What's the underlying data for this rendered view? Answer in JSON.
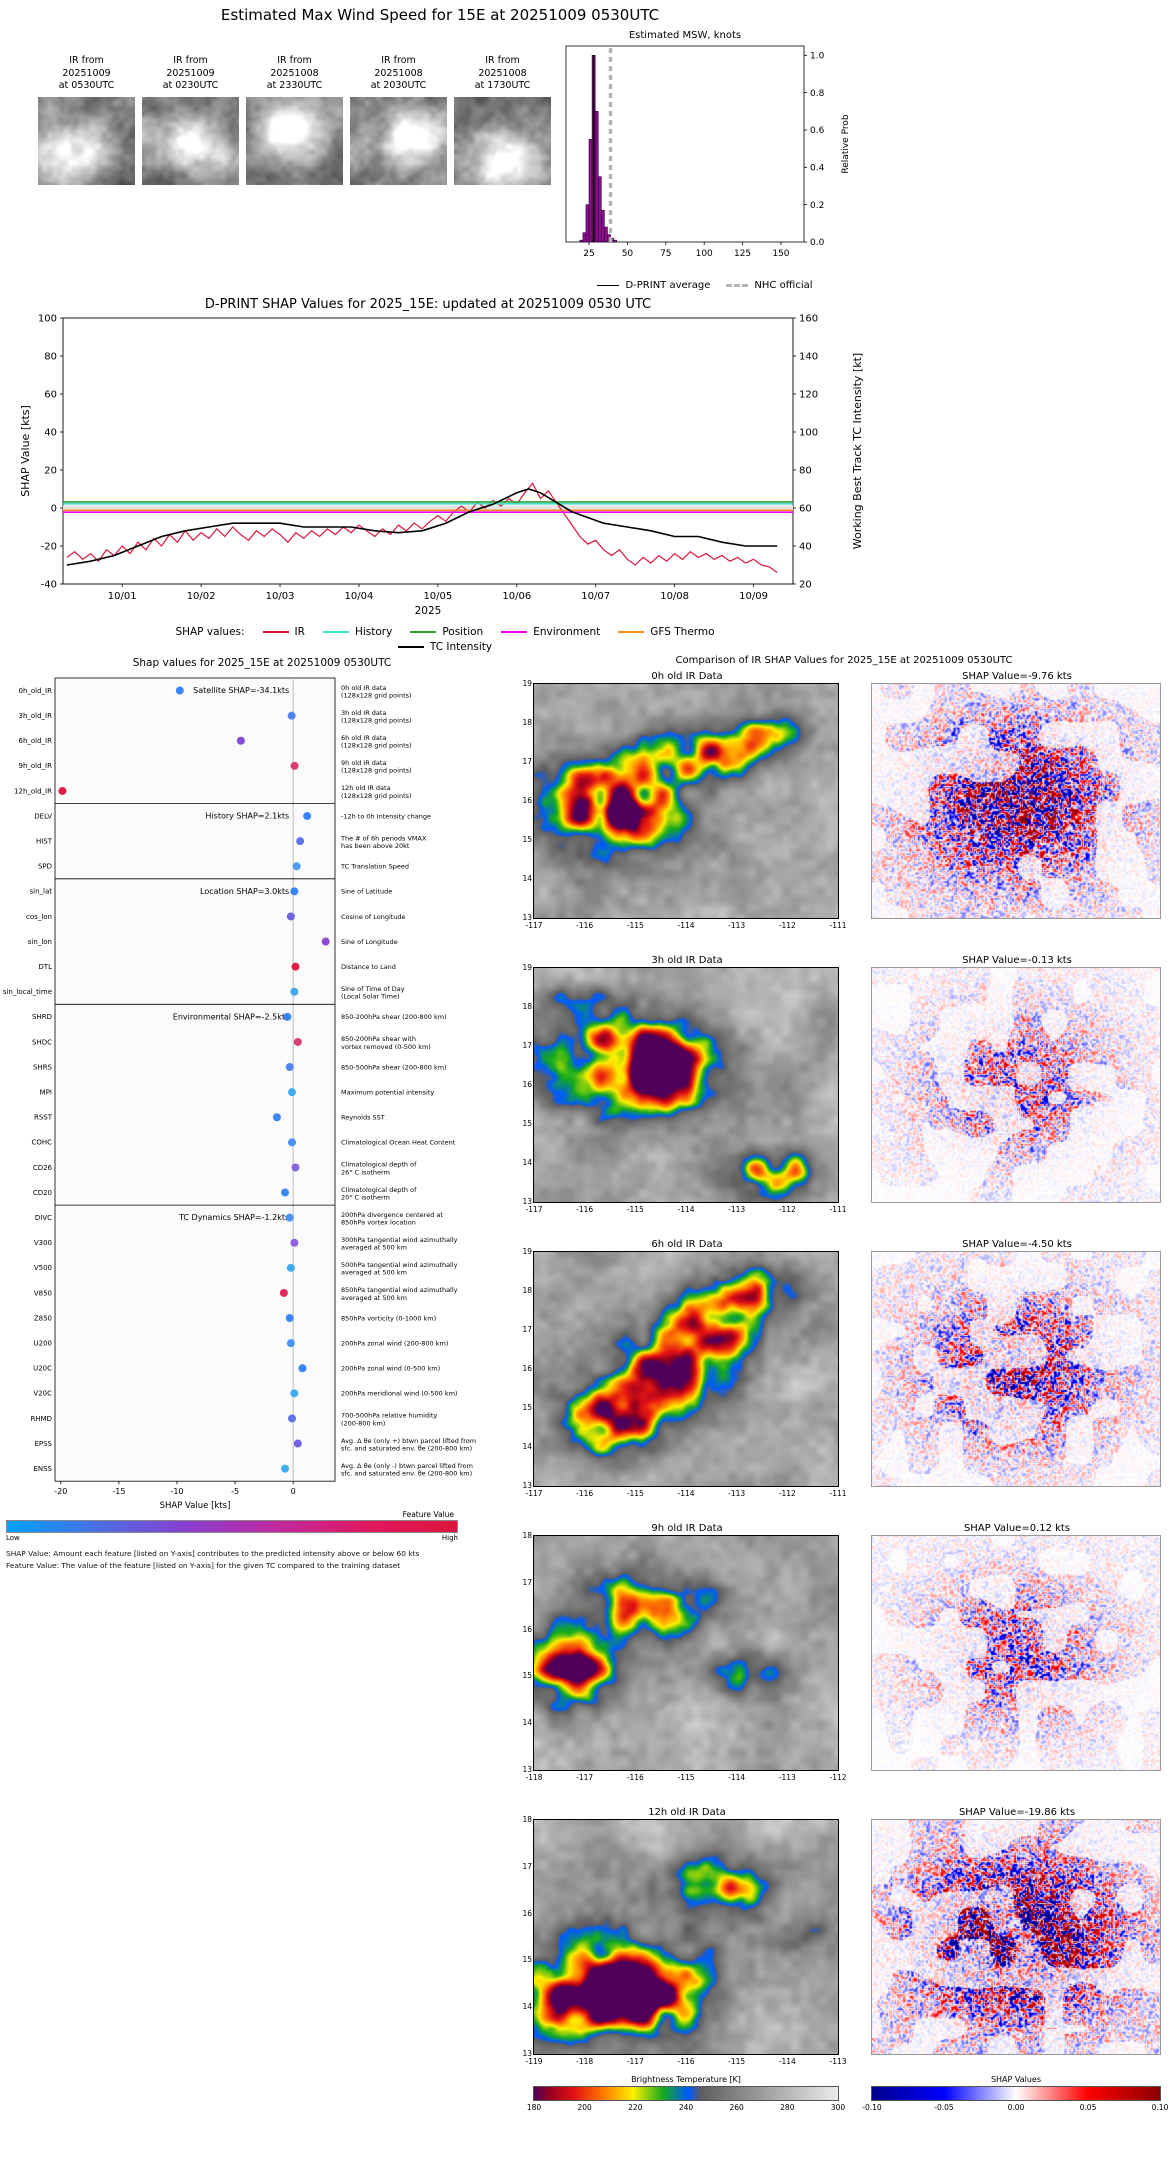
{
  "header": {
    "title": "Estimated Max Wind Speed for 15E at 20251009 0530UTC"
  },
  "ir_thumbs": [
    {
      "lines": [
        "IR from",
        "20251009",
        "at 0530UTC"
      ]
    },
    {
      "lines": [
        "IR from",
        "20251009",
        "at 0230UTC"
      ]
    },
    {
      "lines": [
        "IR from",
        "20251008",
        "at 2330UTC"
      ]
    },
    {
      "lines": [
        "IR from",
        "20251008",
        "at 2030UTC"
      ]
    },
    {
      "lines": [
        "IR from",
        "20251008",
        "at 1730UTC"
      ]
    }
  ],
  "chart_data": [
    {
      "type": "bar",
      "title": "Estimated MSW, knots",
      "ylabel": "Relative Prob",
      "xlim": [
        10,
        165
      ],
      "ylim": [
        0,
        1.05
      ],
      "xticks": [
        25,
        50,
        75,
        100,
        125,
        150
      ],
      "yticks": [
        "0.0",
        "0.2",
        "0.4",
        "0.6",
        "0.8",
        "1.0"
      ],
      "bin_width": 2,
      "bin_centers": [
        20,
        22,
        24,
        26,
        28,
        30,
        32,
        34,
        36,
        38,
        40,
        42
      ],
      "values": [
        0.01,
        0.05,
        0.2,
        0.55,
        1.0,
        0.7,
        0.35,
        0.17,
        0.08,
        0.04,
        0.02,
        0.01
      ],
      "bar_color": "#8a0f8a",
      "dprint_average": 28,
      "nhc_official": 39,
      "legend": [
        "D-PRINT average",
        "NHC official"
      ]
    },
    {
      "type": "line",
      "title": "D-PRINT SHAP Values for 2025_15E: updated at 20251009 0530 UTC",
      "ylabel_left": "SHAP Value [kts]",
      "ylabel_right": "Working Best Track TC Intensity [kt]",
      "xlabel": "2025",
      "xlim": [
        0.25,
        9.5
      ],
      "ylim_left": [
        -40,
        100
      ],
      "ylim_right": [
        20,
        160
      ],
      "yticks_left": [
        -40,
        -20,
        0,
        20,
        40,
        60,
        80,
        100
      ],
      "yticks_right": [
        20,
        40,
        60,
        80,
        100,
        120,
        140,
        160
      ],
      "xticks": [
        {
          "x": 1,
          "label": "10/01"
        },
        {
          "x": 2,
          "label": "10/02"
        },
        {
          "x": 3,
          "label": "10/03"
        },
        {
          "x": 4,
          "label": "10/04"
        },
        {
          "x": 5,
          "label": "10/05"
        },
        {
          "x": 6,
          "label": "10/06"
        },
        {
          "x": 7,
          "label": "10/07"
        },
        {
          "x": 8,
          "label": "10/08"
        },
        {
          "x": 9,
          "label": "10/09"
        }
      ],
      "legend_label": "SHAP values:",
      "series": [
        {
          "name": "IR",
          "color": "#dc143c",
          "width": 1.2,
          "x0": 0.3,
          "dx": 0.1,
          "y": [
            -26,
            -23,
            -27,
            -24,
            -28,
            -22,
            -25,
            -20,
            -24,
            -18,
            -22,
            -16,
            -20,
            -14,
            -18,
            -12,
            -17,
            -13,
            -16,
            -11,
            -15,
            -10,
            -14,
            -17,
            -12,
            -15,
            -11,
            -14,
            -18,
            -13,
            -16,
            -12,
            -15,
            -11,
            -14,
            -10,
            -13,
            -9,
            -12,
            -15,
            -11,
            -14,
            -9,
            -12,
            -8,
            -11,
            -7,
            -4,
            -7,
            -2,
            1,
            -2,
            3,
            0,
            4,
            1,
            5,
            2,
            8,
            13,
            5,
            9,
            3,
            -3,
            -9,
            -15,
            -19,
            -17,
            -22,
            -25,
            -22,
            -27,
            -30,
            -26,
            -29,
            -25,
            -28,
            -24,
            -27,
            -23,
            -26,
            -24,
            -27,
            -25,
            -28,
            -26,
            -29,
            -27,
            -30,
            -31,
            -34
          ]
        },
        {
          "name": "History",
          "color": "#40e0d0",
          "y_const": 2.2
        },
        {
          "name": "Position",
          "color": "#2ea02e",
          "y_const": 3.2
        },
        {
          "name": "Environment",
          "color": "#ee00ee",
          "y_const": -2.2
        },
        {
          "name": "GFS Thermo",
          "color": "#ff8c1a",
          "y_const": -1.2
        },
        {
          "name": "TC Intensity",
          "color": "#000000",
          "axis": "right",
          "width": 1.6,
          "x": [
            0.3,
            0.6,
            0.9,
            1.2,
            1.5,
            1.8,
            2.1,
            2.4,
            2.7,
            3.0,
            3.3,
            3.6,
            3.9,
            4.2,
            4.5,
            4.8,
            5.1,
            5.4,
            5.7,
            6.0,
            6.15,
            6.3,
            6.5,
            6.7,
            6.9,
            7.1,
            7.4,
            7.7,
            8.0,
            8.3,
            8.6,
            8.9,
            9.2,
            9.3
          ],
          "y": [
            30,
            32,
            35,
            40,
            45,
            48,
            50,
            52,
            52,
            52,
            50,
            50,
            50,
            48,
            47,
            48,
            52,
            58,
            62,
            68,
            70,
            68,
            63,
            58,
            55,
            52,
            50,
            48,
            45,
            45,
            42,
            40,
            40,
            40
          ]
        }
      ]
    },
    {
      "type": "scatter",
      "title": "Shap values for 2025_15E at 20251009 0530UTC",
      "xlabel": "SHAP Value [kts]",
      "xlim": [
        -20.5,
        3.6
      ],
      "xticks": [
        -20,
        -15,
        -10,
        -5,
        0
      ],
      "sections": [
        {
          "label": "Satellite SHAP=-34.1kts",
          "rows": [
            {
              "feature": "0h_old_IR",
              "shap": -9.76,
              "color": "#2d7ff7",
              "desc": [
                "0h old IR data",
                "(128x128 grid points)"
              ]
            },
            {
              "feature": "3h_old_IR",
              "shap": -0.13,
              "color": "#4a7df0",
              "desc": [
                "3h old IR data",
                "(128x128 grid points)"
              ]
            },
            {
              "feature": "6h_old_IR",
              "shap": -4.5,
              "color": "#7d3fd4",
              "desc": [
                "6h old IR data",
                "(128x128 grid points)"
              ]
            },
            {
              "feature": "9h_old_IR",
              "shap": 0.12,
              "color": "#d6336c",
              "desc": [
                "9h old IR data",
                "(128x128 grid points)"
              ]
            },
            {
              "feature": "12h_old_IR",
              "shap": -19.86,
              "color": "#dc143c",
              "desc": [
                "12h old IR data",
                "(128x128 grid points)"
              ]
            }
          ]
        },
        {
          "label": "History SHAP=2.1kts",
          "rows": [
            {
              "feature": "DELV",
              "shap": 1.2,
              "color": "#2d7ff7",
              "desc": [
                "-12h to 0h Intensity change"
              ]
            },
            {
              "feature": "HIST",
              "shap": 0.6,
              "color": "#5a6ae8",
              "desc": [
                "The # of 6h periods VMAX",
                "has been above 20kt"
              ]
            },
            {
              "feature": "SPD",
              "shap": 0.3,
              "color": "#3f9bf5",
              "desc": [
                "TC Translation Speed"
              ]
            }
          ]
        },
        {
          "label": "Location SHAP=3.0kts",
          "rows": [
            {
              "feature": "sin_lat",
              "shap": 0.1,
              "color": "#2d7ff7",
              "desc": [
                "Sine of Latitude"
              ]
            },
            {
              "feature": "cos_lon",
              "shap": -0.2,
              "color": "#6a5ae0",
              "desc": [
                "Cosine of Longitude"
              ]
            },
            {
              "feature": "sin_lon",
              "shap": 2.8,
              "color": "#8a3fd0",
              "desc": [
                "Sine of Longitude"
              ]
            },
            {
              "feature": "DTL",
              "shap": 0.2,
              "color": "#dc143c",
              "desc": [
                "Distance to Land"
              ]
            },
            {
              "feature": "sin_local_time",
              "shap": 0.1,
              "color": "#35a7f0",
              "desc": [
                "Sine of Time of Day",
                "(Local Solar Time)"
              ]
            }
          ]
        },
        {
          "label": "Environmental SHAP=-2.5kts",
          "rows": [
            {
              "feature": "SHRD",
              "shap": -0.5,
              "color": "#2d7ff7",
              "desc": [
                "850-200hPa shear (200-800 km)"
              ]
            },
            {
              "feature": "SHDC",
              "shap": 0.4,
              "color": "#d6336c",
              "desc": [
                "850-200hPa shear with",
                "vortex removed (0-500 km)"
              ]
            },
            {
              "feature": "SHRS",
              "shap": -0.3,
              "color": "#4a7df0",
              "desc": [
                "850-500hPa shear (200-800 km)"
              ]
            },
            {
              "feature": "MPI",
              "shap": -0.1,
              "color": "#35a7f0",
              "desc": [
                "Maximum potential intensity"
              ]
            },
            {
              "feature": "RSST",
              "shap": -1.4,
              "color": "#2d7ff7",
              "desc": [
                "Reynolds SST"
              ]
            },
            {
              "feature": "COHC",
              "shap": -0.1,
              "color": "#3f8ef5",
              "desc": [
                "Climatological Ocean Heat Content"
              ]
            },
            {
              "feature": "CD26",
              "shap": 0.2,
              "color": "#7d5ae0",
              "desc": [
                "Climatological depth of",
                "26° C isotherm"
              ]
            },
            {
              "feature": "CD20",
              "shap": -0.7,
              "color": "#2d7ff7",
              "desc": [
                "Climatological depth of",
                "20° C isotherm"
              ]
            }
          ]
        },
        {
          "label": "TC Dynamics SHAP=-1.2kts",
          "rows": [
            {
              "feature": "DIVC",
              "shap": -0.3,
              "color": "#3f8ef5",
              "desc": [
                "200hPa divergence centered at",
                "850hPa vortex location"
              ]
            },
            {
              "feature": "V300",
              "shap": 0.1,
              "color": "#8a5ae0",
              "desc": [
                "300hPa tangential wind azimuthally",
                "averaged at 500 km"
              ]
            },
            {
              "feature": "V500",
              "shap": -0.2,
              "color": "#35a7f0",
              "desc": [
                "500hPa tangential wind azimuthally",
                "averaged at 500 km"
              ]
            },
            {
              "feature": "V850",
              "shap": -0.8,
              "color": "#dc2050",
              "desc": [
                "850hPa tangential wind azimuthally",
                "averaged at 500 km"
              ]
            },
            {
              "feature": "Z850",
              "shap": -0.3,
              "color": "#2d7ff7",
              "desc": [
                "850hPa vorticity (0-1000 km)"
              ]
            },
            {
              "feature": "U200",
              "shap": -0.2,
              "color": "#3f8ef5",
              "desc": [
                "200hPa zonal wind (200-800 km)"
              ]
            },
            {
              "feature": "U20C",
              "shap": 0.8,
              "color": "#2d7ff7",
              "desc": [
                "200hPa zonal wind (0-500 km)"
              ]
            },
            {
              "feature": "V20C",
              "shap": 0.1,
              "color": "#35a7f0",
              "desc": [
                "200hPa meridional wind (0-500 km)"
              ]
            },
            {
              "feature": "RHMD",
              "shap": -0.1,
              "color": "#5a6ae8",
              "desc": [
                "700-500hPa relative humidity",
                "(200-800 km)"
              ]
            },
            {
              "feature": "EPSS",
              "shap": 0.4,
              "color": "#6a5ae8",
              "desc": [
                "Avg. Δ θe (only +) btwn parcel lifted from",
                "sfc. and saturated env. θe (200-800 km)"
              ]
            },
            {
              "feature": "ENSS",
              "shap": -0.7,
              "color": "#35a7f0",
              "desc": [
                "Avg. Δ θe (only -) btwn parcel lifted from",
                "sfc. and saturated env. θe (200-800 km)"
              ]
            }
          ]
        }
      ],
      "colorbar": {
        "label": "Feature Value",
        "low": "Low",
        "high": "High",
        "colors": [
          "#00a2ff",
          "#4a6fe3",
          "#8a3fd0",
          "#c02aa0",
          "#e01860",
          "#dc143c"
        ]
      },
      "footnotes": [
        "SHAP Value: Amount each feature [listed on Y-axis] contributes to the predicted intensity above or below 60 kts",
        "Feature Value: The value of the feature [listed on Y-axis] for the given TC compared to the training dataset"
      ]
    },
    {
      "type": "heatmap",
      "title": "Comparison of IR SHAP Values for 2025_15E at 20251009 0530UTC",
      "rows": [
        {
          "ir_title": "0h old IR Data",
          "shap_title": "SHAP Value=-9.76 kts",
          "shap": -9.76,
          "xticks": [
            -117,
            -116,
            -115,
            -114,
            -113,
            -112,
            -111
          ],
          "yticks": [
            19,
            18,
            17,
            16,
            15,
            14,
            13
          ]
        },
        {
          "ir_title": "3h old IR Data",
          "shap_title": "SHAP Value=-0.13 kts",
          "shap": -0.13,
          "xticks": [
            -117,
            -116,
            -115,
            -114,
            -113,
            -112,
            -111
          ],
          "yticks": [
            19,
            18,
            17,
            16,
            15,
            14,
            13
          ]
        },
        {
          "ir_title": "6h old IR Data",
          "shap_title": "SHAP Value=-4.50 kts",
          "shap": -4.5,
          "xticks": [
            -117,
            -116,
            -115,
            -114,
            -113,
            -112,
            -111
          ],
          "yticks": [
            19,
            18,
            17,
            16,
            15,
            14,
            13
          ]
        },
        {
          "ir_title": "9h old IR Data",
          "shap_title": "SHAP Value=0.12 kts",
          "shap": 0.12,
          "xticks": [
            -118,
            -117,
            -116,
            -115,
            -114,
            -113,
            -112
          ],
          "yticks": [
            18,
            17,
            16,
            15,
            14,
            13
          ]
        },
        {
          "ir_title": "12h old IR Data",
          "shap_title": "SHAP Value=-19.86 kts",
          "shap": -19.86,
          "xticks": [
            -119,
            -118,
            -117,
            -116,
            -115,
            -114,
            -113
          ],
          "yticks": [
            18,
            17,
            16,
            15,
            14,
            13
          ]
        }
      ],
      "bt_colorbar": {
        "label": "Brightness Temperature [K]",
        "ticks": [
          180,
          200,
          220,
          240,
          260,
          280,
          300
        ]
      },
      "shap_colorbar": {
        "label": "SHAP Values",
        "ticks": [
          "-0.10",
          "-0.05",
          "0.00",
          "0.05",
          "0.10"
        ]
      }
    }
  ]
}
